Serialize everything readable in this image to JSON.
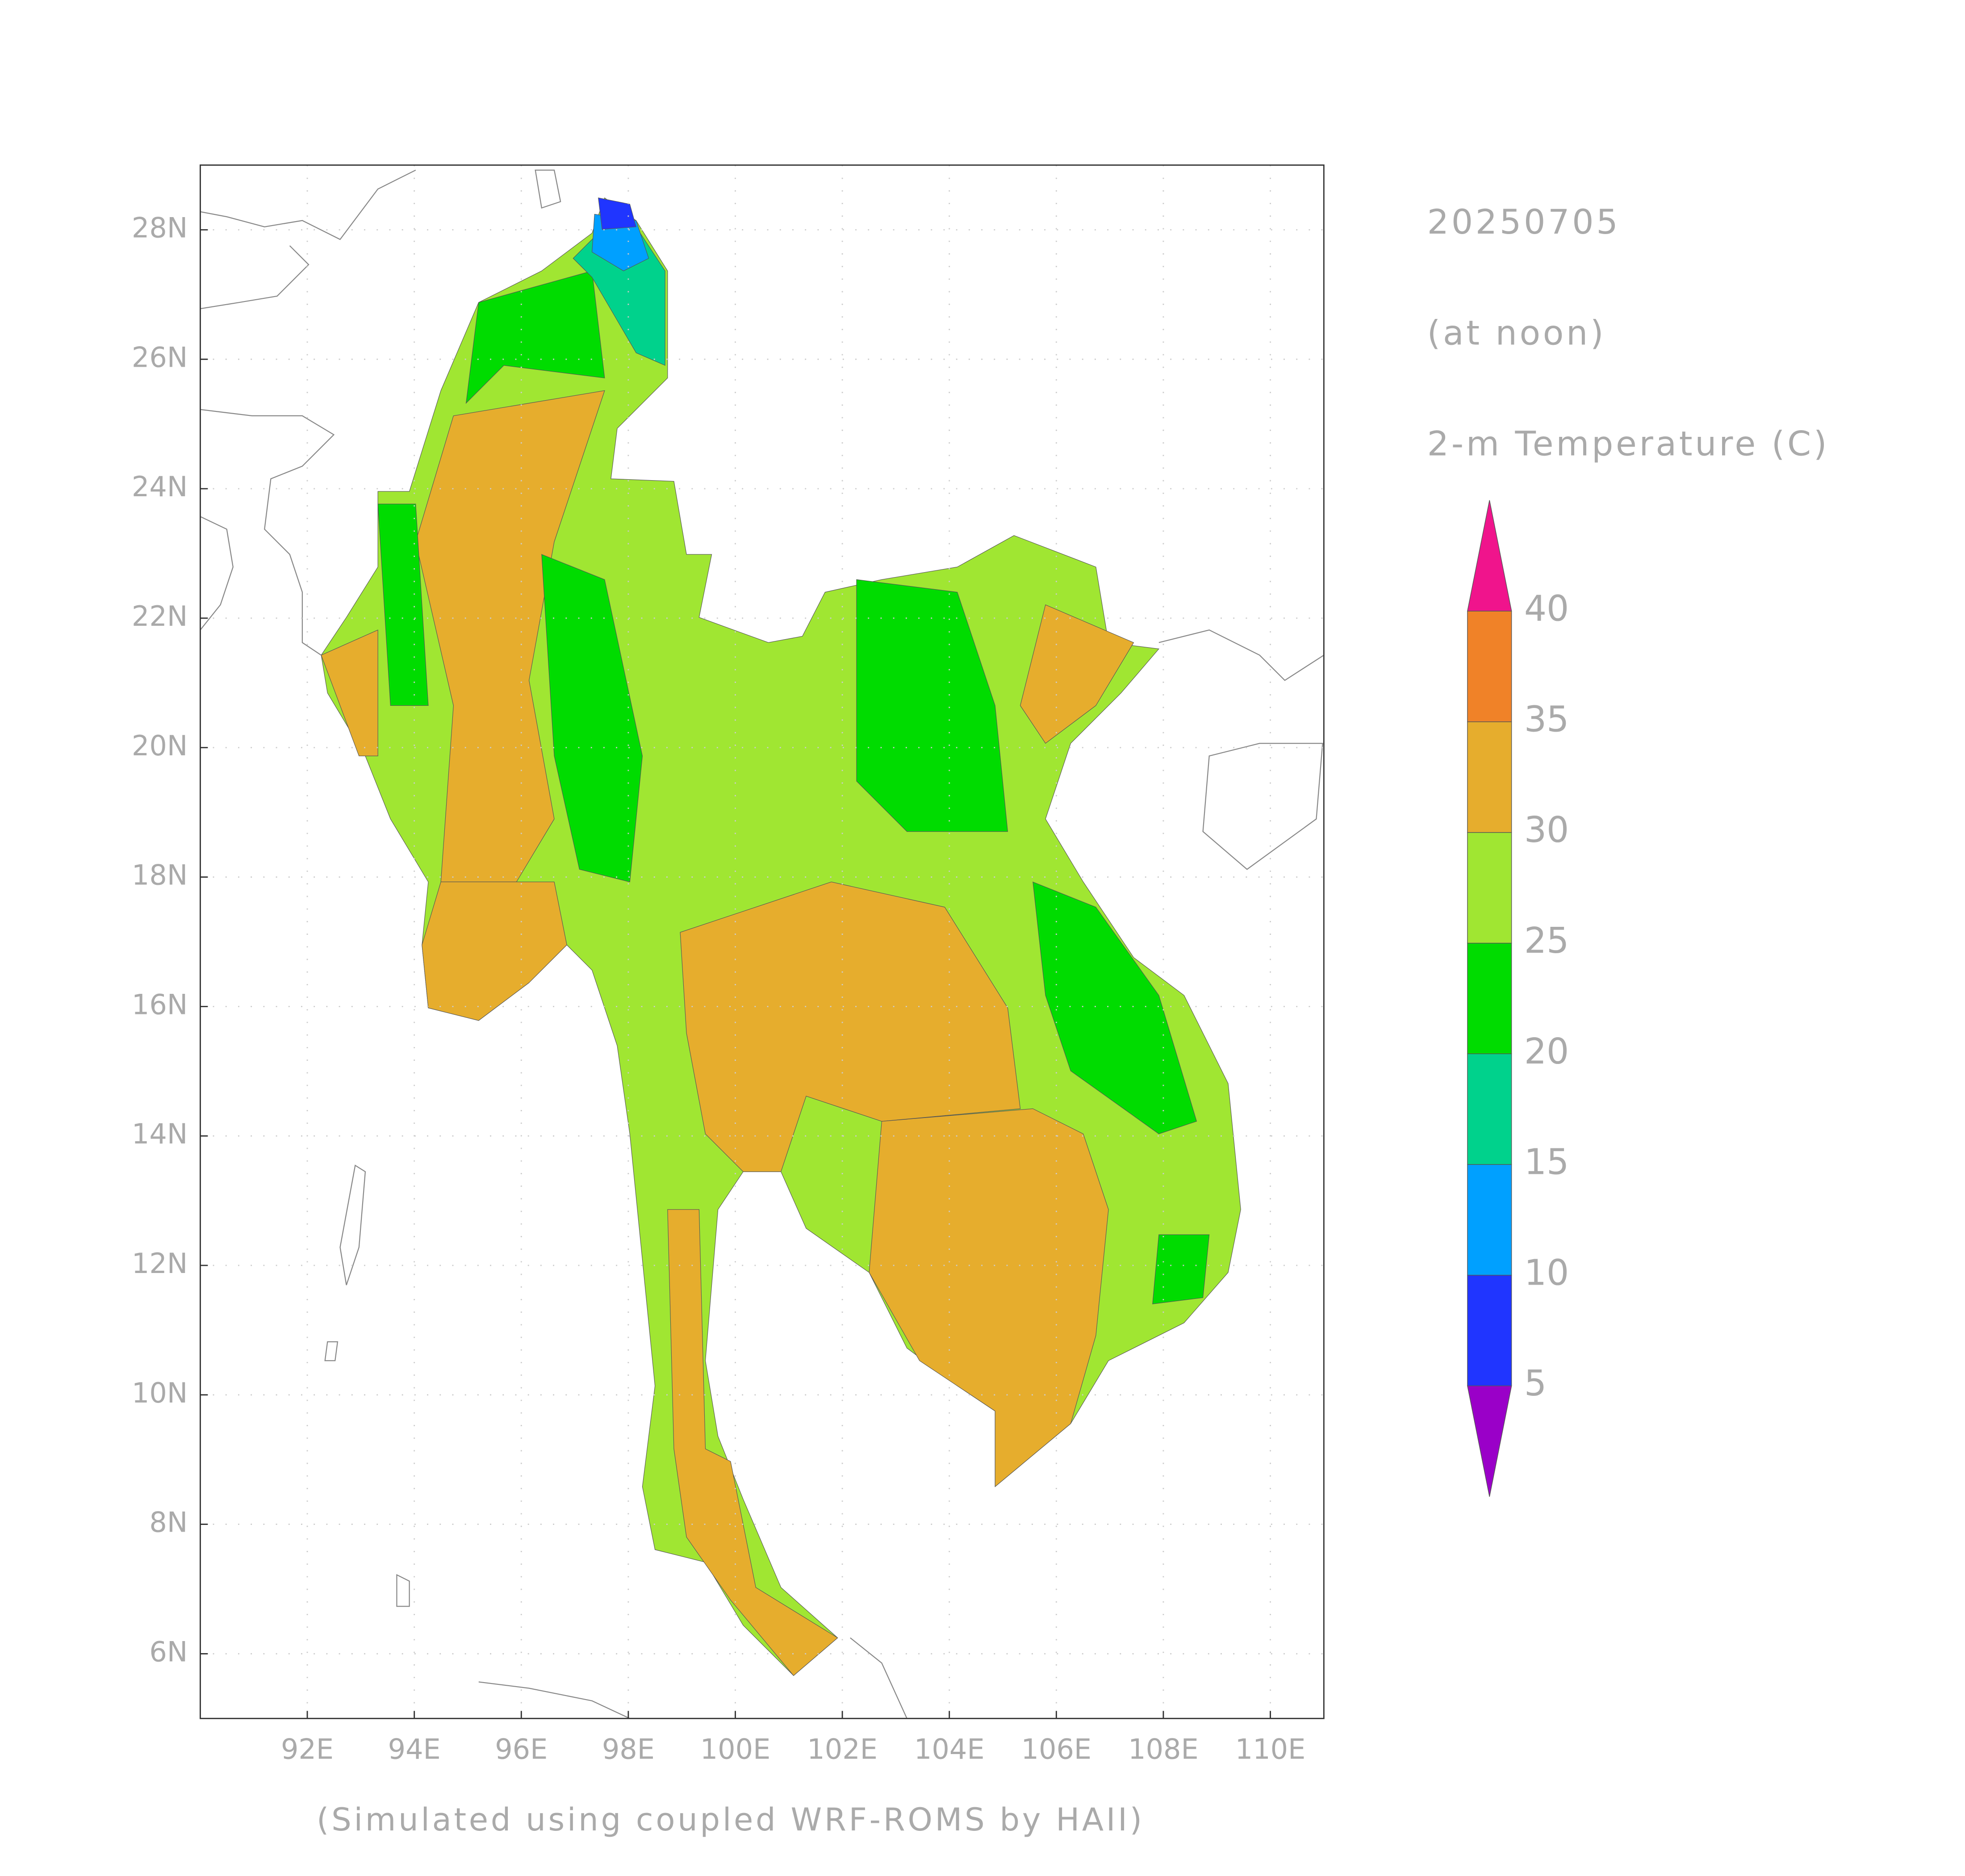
{
  "chart_data": {
    "type": "contour_map",
    "date": "20250705",
    "subtitle": "(at noon)",
    "variable": "2-m Temperature (C)",
    "footnote": "(Simulated using coupled WRF-ROMS by HAII)",
    "xlim": [
      90,
      111
    ],
    "ylim": [
      5,
      29
    ],
    "xticks": [
      {
        "value": 92,
        "label": "92E"
      },
      {
        "value": 94,
        "label": "94E"
      },
      {
        "value": 96,
        "label": "96E"
      },
      {
        "value": 98,
        "label": "98E"
      },
      {
        "value": 100,
        "label": "100E"
      },
      {
        "value": 102,
        "label": "102E"
      },
      {
        "value": 104,
        "label": "104E"
      },
      {
        "value": 106,
        "label": "106E"
      },
      {
        "value": 108,
        "label": "108E"
      },
      {
        "value": 110,
        "label": "110E"
      }
    ],
    "yticks": [
      {
        "value": 6,
        "label": "6N"
      },
      {
        "value": 8,
        "label": "8N"
      },
      {
        "value": 10,
        "label": "10N"
      },
      {
        "value": 12,
        "label": "12N"
      },
      {
        "value": 14,
        "label": "14N"
      },
      {
        "value": 16,
        "label": "16N"
      },
      {
        "value": 18,
        "label": "18N"
      },
      {
        "value": 20,
        "label": "20N"
      },
      {
        "value": 22,
        "label": "22N"
      },
      {
        "value": 24,
        "label": "24N"
      },
      {
        "value": 26,
        "label": "26N"
      },
      {
        "value": 28,
        "label": "28N"
      }
    ],
    "grid": true,
    "colorbar": {
      "levels": [
        5,
        10,
        15,
        20,
        25,
        30,
        35,
        40
      ],
      "colors": [
        "#9a00c8",
        "#2035ff",
        "#00a0ff",
        "#00d28c",
        "#00dc00",
        "#a0e632",
        "#e6ad2d",
        "#f08228",
        "#f0148c"
      ]
    }
  }
}
